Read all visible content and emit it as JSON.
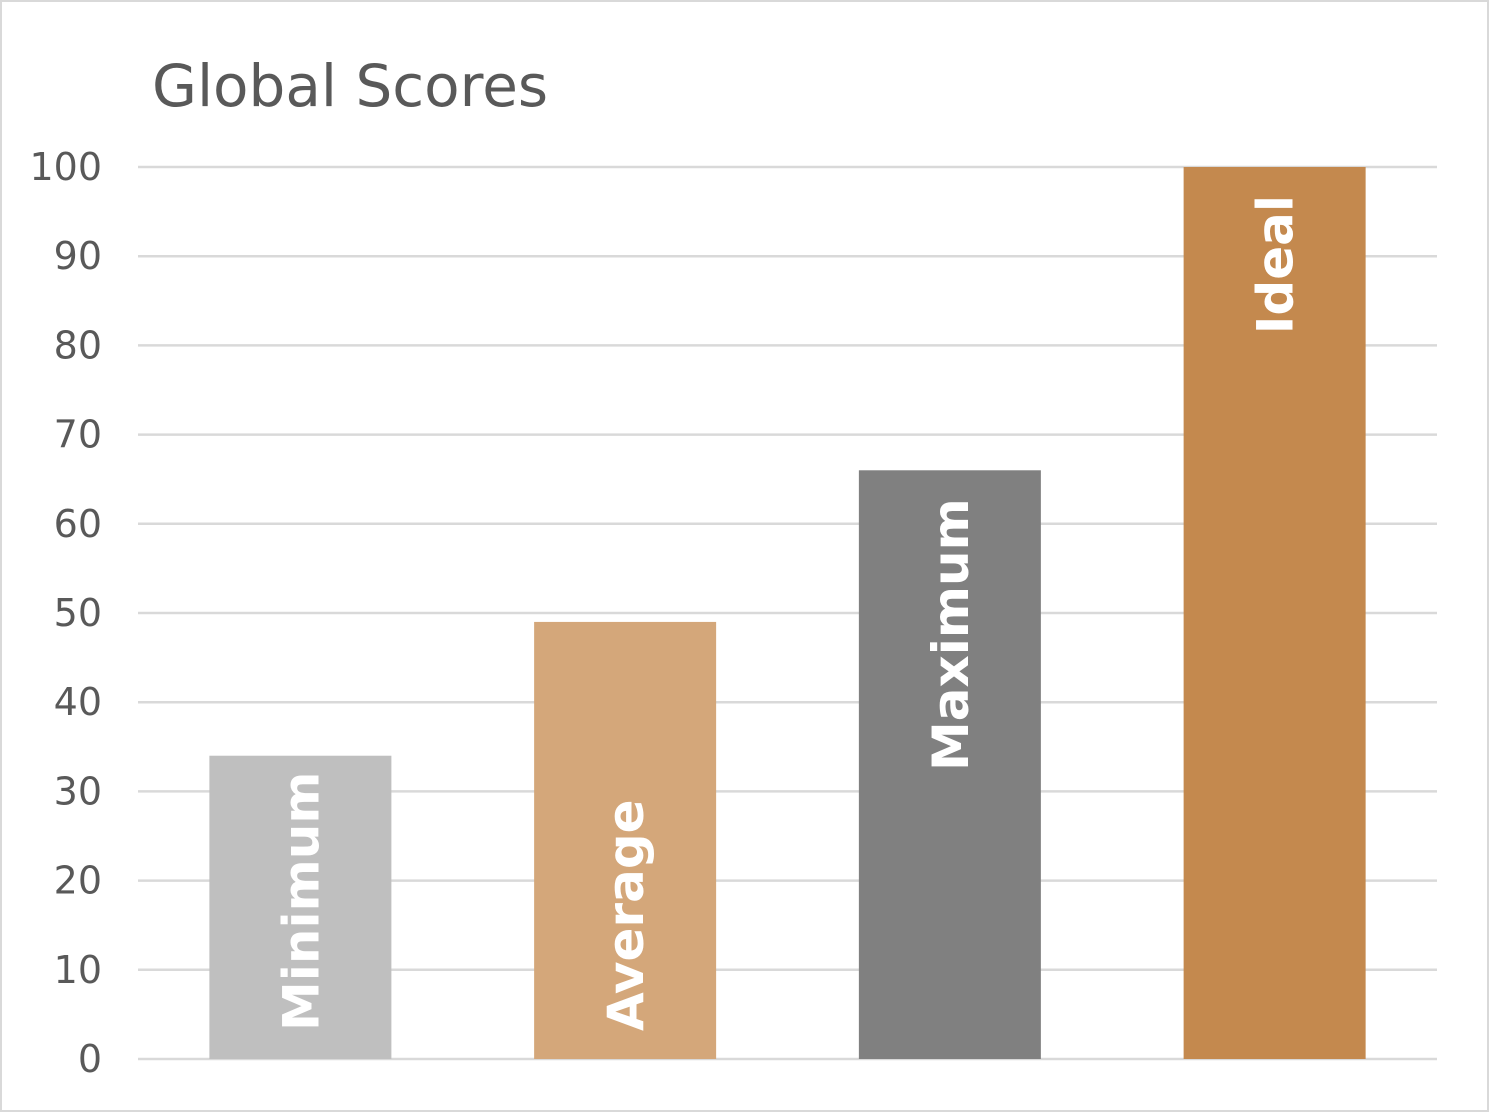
{
  "chart_data": {
    "type": "bar",
    "title": "Global Scores",
    "categories": [
      "Minimum",
      "Average",
      "Maximum",
      "Ideal"
    ],
    "values": [
      34,
      49,
      66,
      100
    ],
    "bar_colors": [
      "#bfbfbf",
      "#d4a77a",
      "#808080",
      "#c4894e"
    ],
    "bar_label_text_color": "#ffffff",
    "gridline_color": "#d9d9d9",
    "ylim": [
      0,
      100
    ],
    "yticks": [
      0,
      10,
      20,
      30,
      40,
      50,
      60,
      70,
      80,
      90,
      100
    ],
    "xlabel": "",
    "ylabel": "",
    "grid": true,
    "legend": "none",
    "category_labels": "inside bars, rotated vertical"
  }
}
